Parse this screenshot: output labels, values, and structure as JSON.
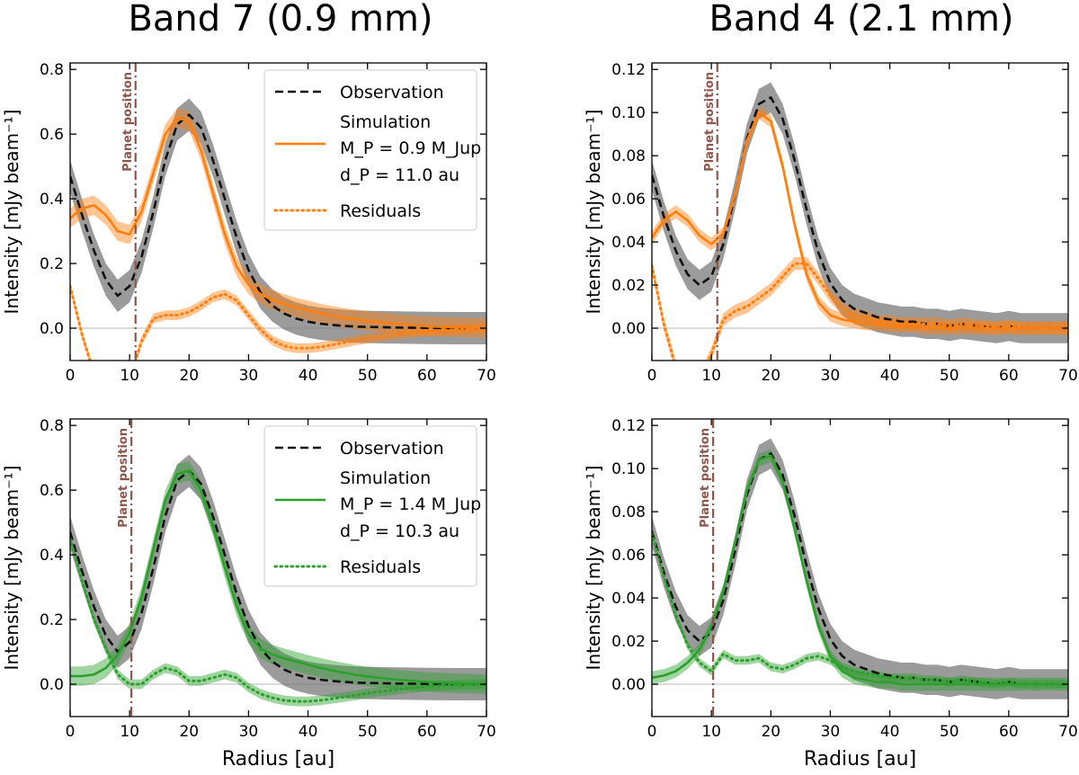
{
  "column_titles": [
    "Band 7 (0.9 mm)",
    "Band 4 (2.1 mm)"
  ],
  "colors": {
    "observation": "#111111",
    "observation_band": "#7a7a7a",
    "orange": "#ff7f0e",
    "green": "#2ca02c",
    "planet_line": "#8c564b",
    "zero_line": "#c8c8c8"
  },
  "chart_data": [
    {
      "type": "line",
      "panel": "top-left",
      "title": "Band 7 (0.9 mm)",
      "xlabel": "",
      "ylabel": "Intensity [mJy beam⁻¹]",
      "xlim": [
        0,
        70
      ],
      "ylim": [
        -0.1,
        0.82
      ],
      "xticks": [
        0,
        10,
        20,
        30,
        40,
        50,
        60,
        70
      ],
      "yticks": [
        0.0,
        0.2,
        0.4,
        0.6,
        0.8
      ],
      "ytick_labels": [
        "0.0",
        "0.2",
        "0.4",
        "0.6",
        "0.8"
      ],
      "sim_color": "orange",
      "planet_position": 11.0,
      "planet_label": "Planet position",
      "legend": {
        "position": "top-right",
        "observation": "Observation",
        "simulation": "Simulation",
        "mass": "M_P = 0.9 M_Jup",
        "distance": "d_P = 11.0 au",
        "residuals": "Residuals"
      },
      "x": [
        0,
        2,
        4,
        6,
        8,
        10,
        12,
        14,
        16,
        18,
        20,
        22,
        24,
        26,
        28,
        30,
        32,
        34,
        36,
        38,
        40,
        42,
        44,
        46,
        48,
        50,
        55,
        60,
        65,
        70
      ],
      "series": [
        {
          "name": "Observation",
          "style": "dashed",
          "band": 0.05,
          "values": [
            0.47,
            0.35,
            0.24,
            0.15,
            0.1,
            0.13,
            0.22,
            0.36,
            0.52,
            0.63,
            0.66,
            0.62,
            0.52,
            0.4,
            0.28,
            0.18,
            0.11,
            0.07,
            0.045,
            0.03,
            0.02,
            0.014,
            0.01,
            0.007,
            0.005,
            0.004,
            0.002,
            0.001,
            0.0,
            0.0
          ]
        },
        {
          "name": "Simulation",
          "style": "solid",
          "band": 0.03,
          "values": [
            0.34,
            0.37,
            0.38,
            0.35,
            0.3,
            0.29,
            0.36,
            0.48,
            0.6,
            0.65,
            0.64,
            0.55,
            0.42,
            0.29,
            0.19,
            0.135,
            0.105,
            0.088,
            0.075,
            0.064,
            0.055,
            0.046,
            0.039,
            0.032,
            0.027,
            0.022,
            0.013,
            0.006,
            0.003,
            0.0
          ]
        },
        {
          "name": "Residuals",
          "style": "dotted",
          "band": 0.015,
          "values": [
            0.13,
            -0.02,
            -0.14,
            -0.2,
            -0.2,
            -0.16,
            -0.04,
            0.03,
            0.04,
            0.04,
            0.05,
            0.07,
            0.095,
            0.105,
            0.085,
            0.04,
            -0.005,
            -0.038,
            -0.055,
            -0.062,
            -0.062,
            -0.058,
            -0.052,
            -0.045,
            -0.038,
            -0.032,
            -0.02,
            -0.01,
            -0.004,
            0.0
          ]
        }
      ]
    },
    {
      "type": "line",
      "panel": "top-right",
      "title": "Band 4 (2.1 mm)",
      "xlabel": "",
      "ylabel": "Intensity [mJy beam⁻¹]",
      "xlim": [
        0,
        70
      ],
      "ylim": [
        -0.015,
        0.123
      ],
      "xticks": [
        0,
        10,
        20,
        30,
        40,
        50,
        60,
        70
      ],
      "yticks": [
        0.0,
        0.02,
        0.04,
        0.06,
        0.08,
        0.1,
        0.12
      ],
      "ytick_labels": [
        "0.00",
        "0.02",
        "0.04",
        "0.06",
        "0.08",
        "0.10",
        "0.12"
      ],
      "sim_color": "orange",
      "planet_position": 11.0,
      "planet_label": "Planet position",
      "x": [
        0,
        2,
        4,
        6,
        8,
        10,
        12,
        14,
        16,
        18,
        20,
        22,
        24,
        26,
        28,
        30,
        32,
        34,
        36,
        38,
        40,
        42,
        44,
        46,
        48,
        50,
        52,
        55,
        58,
        60,
        62,
        65,
        68,
        70
      ],
      "series": [
        {
          "name": "Observation",
          "style": "dashed",
          "band": 0.007,
          "values": [
            0.071,
            0.052,
            0.036,
            0.025,
            0.02,
            0.024,
            0.039,
            0.062,
            0.088,
            0.104,
            0.107,
            0.097,
            0.078,
            0.055,
            0.035,
            0.021,
            0.013,
            0.009,
            0.007,
            0.005,
            0.004,
            0.003,
            0.003,
            0.002,
            0.002,
            0.001,
            0.002,
            0.001,
            0.0,
            0.001,
            0.0,
            0.0,
            0.0,
            0.0
          ]
        },
        {
          "name": "Simulation",
          "style": "solid",
          "band": 0.003,
          "values": [
            0.042,
            0.05,
            0.054,
            0.05,
            0.043,
            0.039,
            0.044,
            0.062,
            0.087,
            0.1,
            0.096,
            0.075,
            0.048,
            0.025,
            0.012,
            0.006,
            0.004,
            0.003,
            0.002,
            0.002,
            0.001,
            0.001,
            0.001,
            0.0,
            0.0,
            0.0,
            0.0,
            0.0,
            0.0,
            0.0,
            0.0,
            0.0,
            0.0,
            0.0
          ]
        },
        {
          "name": "Residuals",
          "style": "dotted",
          "band": 0.003,
          "values": [
            0.029,
            0.002,
            -0.018,
            -0.028,
            -0.024,
            -0.012,
            0.004,
            0.008,
            0.01,
            0.014,
            0.018,
            0.024,
            0.03,
            0.03,
            0.023,
            0.015,
            0.009,
            0.006,
            0.005,
            0.003,
            0.003,
            0.002,
            0.002,
            0.002,
            0.002,
            0.001,
            0.002,
            0.001,
            0.0,
            0.001,
            0.0,
            0.0,
            0.0,
            0.0
          ]
        }
      ]
    },
    {
      "type": "line",
      "panel": "bottom-left",
      "title": "",
      "xlabel": "Radius  [au]",
      "ylabel": "Intensity [mJy beam⁻¹]",
      "xlim": [
        0,
        70
      ],
      "ylim": [
        -0.1,
        0.82
      ],
      "xticks": [
        0,
        10,
        20,
        30,
        40,
        50,
        60,
        70
      ],
      "yticks": [
        0.0,
        0.2,
        0.4,
        0.6,
        0.8
      ],
      "ytick_labels": [
        "0.0",
        "0.2",
        "0.4",
        "0.6",
        "0.8"
      ],
      "sim_color": "green",
      "planet_position": 10.3,
      "planet_label": "Planet position",
      "legend": {
        "position": "top-right",
        "observation": "Observation",
        "simulation": "Simulation",
        "mass": "M_P = 1.4 M_Jup",
        "distance": "d_P = 10.3 au",
        "residuals": "Residuals"
      },
      "x": [
        0,
        2,
        4,
        6,
        8,
        10,
        12,
        14,
        16,
        18,
        20,
        22,
        24,
        26,
        28,
        30,
        32,
        34,
        36,
        38,
        40,
        42,
        44,
        46,
        48,
        50,
        55,
        60,
        65,
        70
      ],
      "series": [
        {
          "name": "Observation",
          "style": "dashed",
          "band": 0.05,
          "values": [
            0.47,
            0.35,
            0.24,
            0.15,
            0.1,
            0.13,
            0.22,
            0.36,
            0.52,
            0.63,
            0.66,
            0.62,
            0.52,
            0.4,
            0.28,
            0.18,
            0.11,
            0.07,
            0.045,
            0.03,
            0.02,
            0.014,
            0.01,
            0.007,
            0.005,
            0.004,
            0.002,
            0.001,
            0.0,
            0.0
          ]
        },
        {
          "name": "Simulation",
          "style": "solid",
          "band": 0.03,
          "values": [
            0.025,
            0.025,
            0.03,
            0.05,
            0.09,
            0.16,
            0.27,
            0.42,
            0.57,
            0.65,
            0.66,
            0.6,
            0.49,
            0.36,
            0.24,
            0.155,
            0.11,
            0.092,
            0.08,
            0.07,
            0.06,
            0.051,
            0.043,
            0.036,
            0.029,
            0.024,
            0.014,
            0.007,
            0.003,
            0.0
          ]
        },
        {
          "name": "Residuals",
          "style": "dotted",
          "band": 0.015,
          "values": [
            0.45,
            0.32,
            0.2,
            0.11,
            0.03,
            0.0,
            0.0,
            0.03,
            0.05,
            0.04,
            0.01,
            0.01,
            0.02,
            0.03,
            0.02,
            -0.01,
            -0.03,
            -0.042,
            -0.05,
            -0.053,
            -0.053,
            -0.05,
            -0.045,
            -0.04,
            -0.034,
            -0.028,
            -0.016,
            -0.007,
            -0.002,
            0.0
          ]
        }
      ]
    },
    {
      "type": "line",
      "panel": "bottom-right",
      "title": "",
      "xlabel": "Radius  [au]",
      "ylabel": "Intensity [mJy beam⁻¹]",
      "xlim": [
        0,
        70
      ],
      "ylim": [
        -0.015,
        0.123
      ],
      "xticks": [
        0,
        10,
        20,
        30,
        40,
        50,
        60,
        70
      ],
      "yticks": [
        0.0,
        0.02,
        0.04,
        0.06,
        0.08,
        0.1,
        0.12
      ],
      "ytick_labels": [
        "0.00",
        "0.02",
        "0.04",
        "0.06",
        "0.08",
        "0.10",
        "0.12"
      ],
      "sim_color": "green",
      "planet_position": 10.3,
      "planet_label": "Planet position",
      "x": [
        0,
        2,
        4,
        6,
        8,
        10,
        12,
        14,
        16,
        18,
        20,
        22,
        24,
        26,
        28,
        30,
        32,
        34,
        36,
        38,
        40,
        42,
        44,
        46,
        48,
        50,
        52,
        55,
        58,
        60,
        62,
        65,
        68,
        70
      ],
      "series": [
        {
          "name": "Observation",
          "style": "dashed",
          "band": 0.007,
          "values": [
            0.071,
            0.052,
            0.036,
            0.025,
            0.02,
            0.024,
            0.039,
            0.062,
            0.088,
            0.104,
            0.107,
            0.097,
            0.078,
            0.055,
            0.035,
            0.021,
            0.013,
            0.009,
            0.007,
            0.005,
            0.004,
            0.003,
            0.003,
            0.002,
            0.002,
            0.001,
            0.002,
            0.001,
            0.0,
            0.001,
            0.0,
            0.0,
            0.0,
            0.0
          ]
        },
        {
          "name": "Simulation",
          "style": "solid",
          "band": 0.003,
          "values": [
            0.003,
            0.004,
            0.006,
            0.01,
            0.016,
            0.027,
            0.043,
            0.066,
            0.09,
            0.104,
            0.106,
            0.094,
            0.072,
            0.048,
            0.027,
            0.013,
            0.006,
            0.003,
            0.002,
            0.001,
            0.001,
            0.0,
            0.0,
            0.0,
            0.0,
            0.0,
            0.0,
            0.0,
            0.0,
            0.0,
            0.0,
            0.0,
            0.0,
            0.0
          ]
        },
        {
          "name": "Residuals",
          "style": "dotted",
          "band": 0.002,
          "values": [
            0.07,
            0.05,
            0.032,
            0.018,
            0.01,
            0.006,
            0.014,
            0.011,
            0.011,
            0.012,
            0.008,
            0.007,
            0.009,
            0.012,
            0.013,
            0.011,
            0.008,
            0.006,
            0.005,
            0.004,
            0.003,
            0.003,
            0.003,
            0.002,
            0.002,
            0.001,
            0.002,
            0.001,
            0.0,
            0.001,
            0.0,
            0.0,
            0.0,
            0.0
          ]
        }
      ]
    }
  ]
}
